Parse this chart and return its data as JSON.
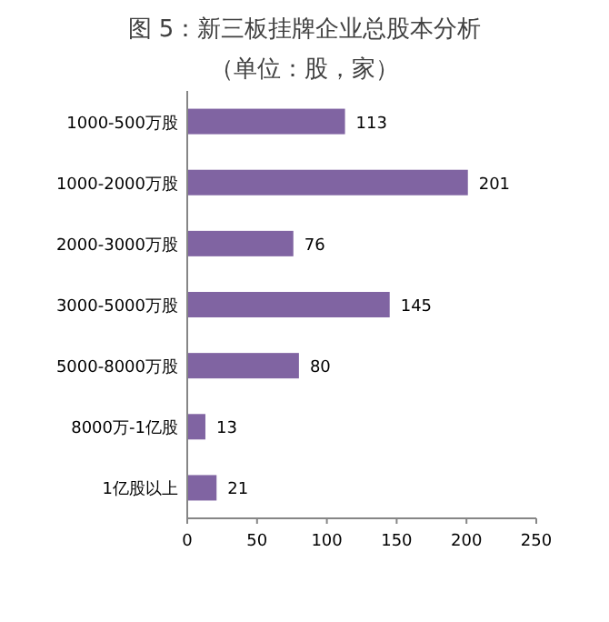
{
  "chart_data": {
    "type": "bar",
    "orientation": "horizontal",
    "title": "图 5：新三板挂牌企业总股本分析",
    "subtitle": "（单位：股，家）",
    "categories": [
      "1000-500万股",
      "1000-2000万股",
      "2000-3000万股",
      "3000-5000万股",
      "5000-8000万股",
      "8000万-1亿股",
      "1亿股以上"
    ],
    "values": [
      113,
      201,
      76,
      145,
      80,
      13,
      21
    ],
    "color": "#8064a2",
    "xlim": [
      0,
      250
    ],
    "xticks": [
      0,
      50,
      100,
      150,
      200,
      250
    ],
    "data_labels": true
  }
}
